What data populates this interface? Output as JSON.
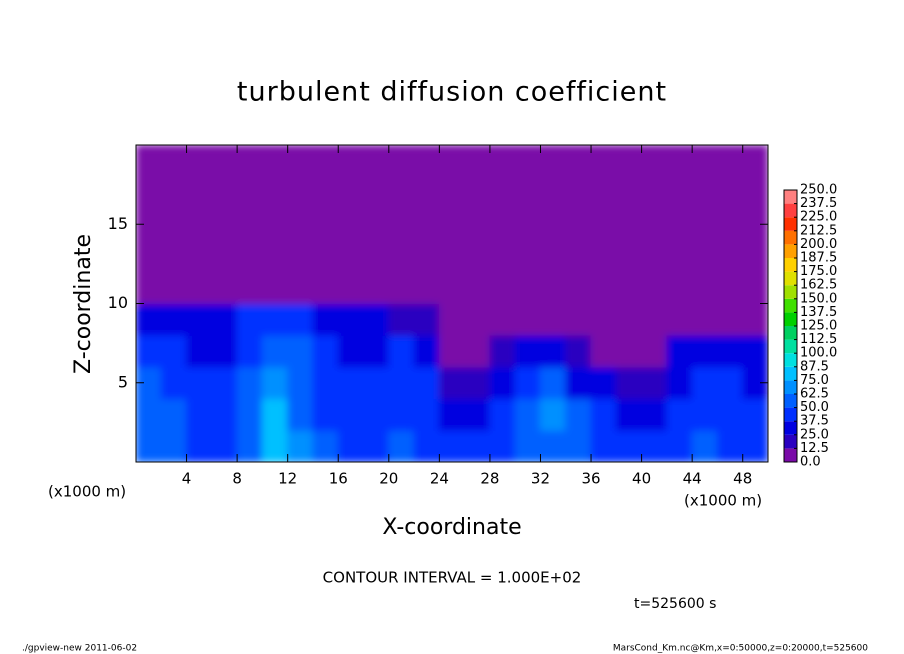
{
  "chart_data": {
    "type": "contour",
    "title": "turbulent diffusion coefficient",
    "xlabel": "X-coordinate",
    "ylabel": "Z-coordinate",
    "xunit": "(x1000 m)",
    "yunit": "(x1000 m)",
    "xlim": [
      0,
      50
    ],
    "ylim": [
      0,
      20
    ],
    "xticks": [
      4,
      8,
      12,
      16,
      20,
      24,
      28,
      32,
      36,
      40,
      44,
      48
    ],
    "yticks": [
      5,
      10,
      15
    ],
    "levels": [
      {
        "value": 0,
        "label": "0.0"
      },
      12.5,
      {
        "value": 25,
        "label": "25.0"
      },
      37.5,
      {
        "value": 50,
        "label": "50.0"
      },
      62.5,
      {
        "value": 75,
        "label": "75.0"
      },
      87.5,
      {
        "value": 100,
        "label": "100.0"
      },
      112.5,
      {
        "value": 125,
        "label": "125.0"
      },
      137.5,
      {
        "value": 150,
        "label": "150.0"
      },
      162.5,
      {
        "value": 175,
        "label": "175.0"
      },
      187.5,
      {
        "value": 200,
        "label": "200.0"
      },
      212.5,
      {
        "value": 225,
        "label": "225.0"
      },
      237.5,
      {
        "value": 250,
        "label": "250.0"
      }
    ],
    "colors": [
      "#7a0aa8",
      "#2a00c0",
      "#0000e0",
      "#0030ff",
      "#0060ff",
      "#0090ff",
      "#00c0ff",
      "#00e0e0",
      "#00e0a0",
      "#00d060",
      "#00d000",
      "#40e000",
      "#a0e000",
      "#e0e000",
      "#ffd000",
      "#ffa000",
      "#ff7000",
      "#ff3000",
      "#ff4040",
      "#ff8080"
    ],
    "x": [
      1,
      3,
      5,
      7,
      9,
      11,
      13,
      15,
      17,
      19,
      21,
      23,
      25,
      27,
      29,
      31,
      33,
      35,
      37,
      39,
      41,
      43,
      45,
      47,
      49
    ],
    "z": [
      1,
      3,
      5,
      7,
      9,
      11,
      13,
      15,
      17,
      19
    ],
    "values": [
      [
        55,
        50,
        45,
        45,
        60,
        80,
        65,
        50,
        45,
        45,
        50,
        45,
        40,
        40,
        45,
        55,
        60,
        50,
        45,
        45,
        40,
        45,
        50,
        45,
        45
      ],
      [
        60,
        55,
        45,
        45,
        55,
        75,
        60,
        45,
        45,
        40,
        45,
        40,
        35,
        35,
        45,
        60,
        70,
        50,
        40,
        35,
        30,
        40,
        45,
        40,
        40
      ],
      [
        50,
        45,
        40,
        40,
        50,
        65,
        55,
        40,
        40,
        40,
        45,
        40,
        20,
        20,
        35,
        45,
        55,
        35,
        25,
        20,
        15,
        35,
        40,
        40,
        35
      ],
      [
        40,
        40,
        35,
        35,
        45,
        60,
        50,
        40,
        35,
        35,
        40,
        35,
        5,
        5,
        15,
        30,
        25,
        15,
        10,
        5,
        5,
        30,
        35,
        35,
        30
      ],
      [
        25,
        30,
        30,
        30,
        40,
        45,
        40,
        35,
        30,
        25,
        20,
        15,
        0,
        0,
        0,
        0,
        0,
        0,
        0,
        0,
        0,
        0,
        0,
        0,
        0
      ],
      [
        0,
        0,
        0,
        0,
        0,
        0,
        0,
        0,
        0,
        0,
        0,
        0,
        0,
        0,
        0,
        0,
        0,
        0,
        0,
        0,
        0,
        0,
        0,
        0,
        0
      ],
      [
        0,
        0,
        0,
        0,
        0,
        0,
        0,
        0,
        0,
        0,
        0,
        0,
        0,
        0,
        0,
        0,
        0,
        0,
        0,
        0,
        0,
        0,
        0,
        0,
        0
      ],
      [
        0,
        0,
        0,
        0,
        0,
        0,
        0,
        0,
        0,
        0,
        0,
        0,
        0,
        0,
        0,
        0,
        0,
        0,
        0,
        0,
        0,
        0,
        0,
        0,
        0
      ],
      [
        0,
        0,
        0,
        0,
        0,
        0,
        0,
        0,
        0,
        0,
        0,
        0,
        0,
        0,
        0,
        0,
        0,
        0,
        0,
        0,
        0,
        0,
        0,
        0,
        0
      ],
      [
        0,
        0,
        0,
        0,
        0,
        0,
        0,
        0,
        0,
        0,
        0,
        0,
        0,
        0,
        0,
        0,
        0,
        0,
        0,
        0,
        0,
        0,
        0,
        0,
        0
      ]
    ],
    "contour_interval": "CONTOUR INTERVAL = 1.000E+02",
    "time": "t=525600 s",
    "footer_left": "./gpview-new  2011-06-02",
    "footer_right": "MarsCond_Km.nc@Km,x=0:50000,z=0:20000,t=525600"
  }
}
